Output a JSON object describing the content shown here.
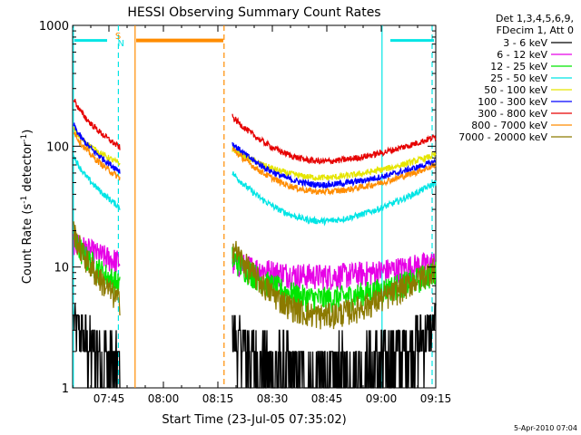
{
  "colors": {
    "cyan": "#00e5e5",
    "orange": "#ff8c00",
    "frame": "#000000"
  },
  "chart_data": {
    "type": "line",
    "title": "HESSI Observing Summary Count Rates",
    "xlabel": "Start Time (23-Jul-05 07:35:02)",
    "ylabel": "Count Rate (s",
    "ylabel_sup": "-1",
    "ylabel_mid": " detector",
    "ylabel_sup2": "-1",
    "ylabel_end": ")",
    "y_scale": "log",
    "ylim": [
      1,
      1000
    ],
    "xlim_minutes": [
      0,
      100
    ],
    "x_tick_labels": [
      "07:45",
      "08:00",
      "08:15",
      "08:30",
      "08:45",
      "09:00",
      "09:15"
    ],
    "x_ticks_minutes": [
      10,
      25,
      40,
      55,
      70,
      85,
      100
    ],
    "y_tick_labels": [
      "1",
      "10",
      "100",
      "1000"
    ],
    "y_ticks": [
      1,
      10,
      100,
      1000
    ],
    "legend_placement": "outside-right",
    "legend_header": [
      "Det 1,3,4,5,6,9,",
      "FDecim 1, Att 0"
    ],
    "markers": [
      {
        "label": "S",
        "minute": 12.5,
        "color": "#ff8c00"
      },
      {
        "label": "N",
        "minute": 13.3,
        "color": "#00e5e5"
      }
    ],
    "series": [
      {
        "name": "3 - 6 keV",
        "color": "#000000",
        "a": 2.8,
        "b": 1.0,
        "c": 3.5
      },
      {
        "name": "6 - 12 keV",
        "color": "#e600e6",
        "a": 11,
        "b": 8.5,
        "c": 11
      },
      {
        "name": "12 - 25 keV",
        "color": "#00e600",
        "a": 12,
        "b": 5.5,
        "c": 9
      },
      {
        "name": "25 - 50 keV",
        "color": "#00e5e5",
        "a": 60,
        "b": 24,
        "c": 50
      },
      {
        "name": "50 - 100 keV",
        "color": "#e5e500",
        "a": 95,
        "b": 55,
        "c": 85
      },
      {
        "name": "100 - 300 keV",
        "color": "#0000ff",
        "a": 105,
        "b": 48,
        "c": 75
      },
      {
        "name": "300 - 800 keV",
        "color": "#e60000",
        "a": 175,
        "b": 75,
        "c": 120
      },
      {
        "name": "800 - 7000 keV",
        "color": "#ff8c00",
        "a": 95,
        "b": 42,
        "c": 70
      },
      {
        "name": "7000 - 20000 keV",
        "color": "#8c7a00",
        "a": 15,
        "b": 4,
        "c": 10
      }
    ],
    "saturation_level": 750,
    "footer_date": "5-Apr-2010 07:04"
  }
}
